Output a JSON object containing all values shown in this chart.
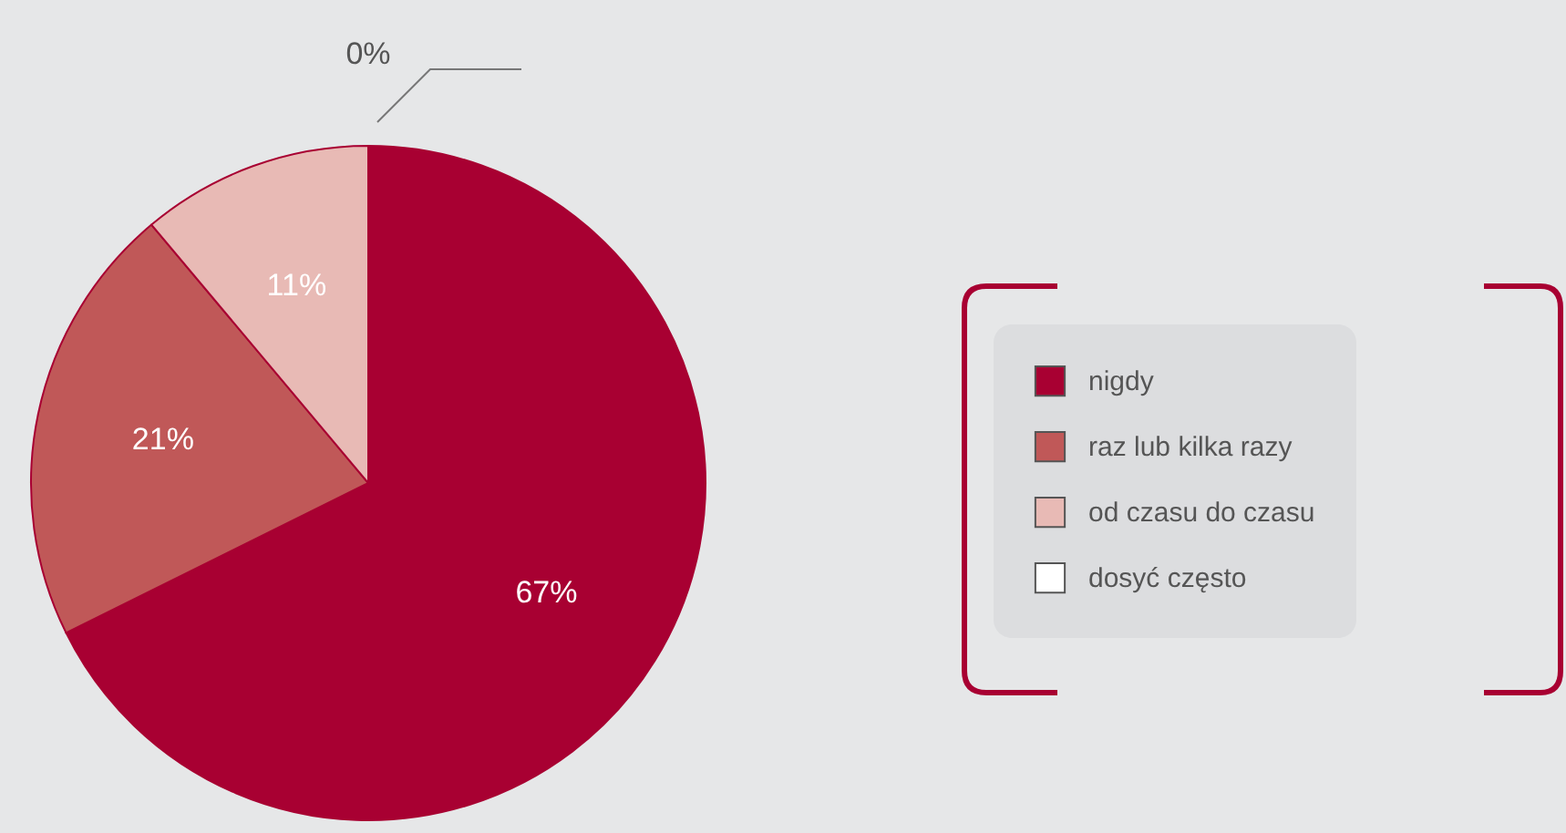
{
  "chart_data": {
    "type": "pie",
    "categories": [
      "nigdy",
      "raz lub kilka razy",
      "od czasu do czasu",
      "dosyć często"
    ],
    "values": [
      67,
      21,
      11,
      0
    ],
    "colors": [
      "#a80032",
      "#c05858",
      "#e8bab5",
      "#ffffff"
    ],
    "value_labels": [
      "67%",
      "21%",
      "11%",
      "0%"
    ],
    "legend": "right"
  }
}
